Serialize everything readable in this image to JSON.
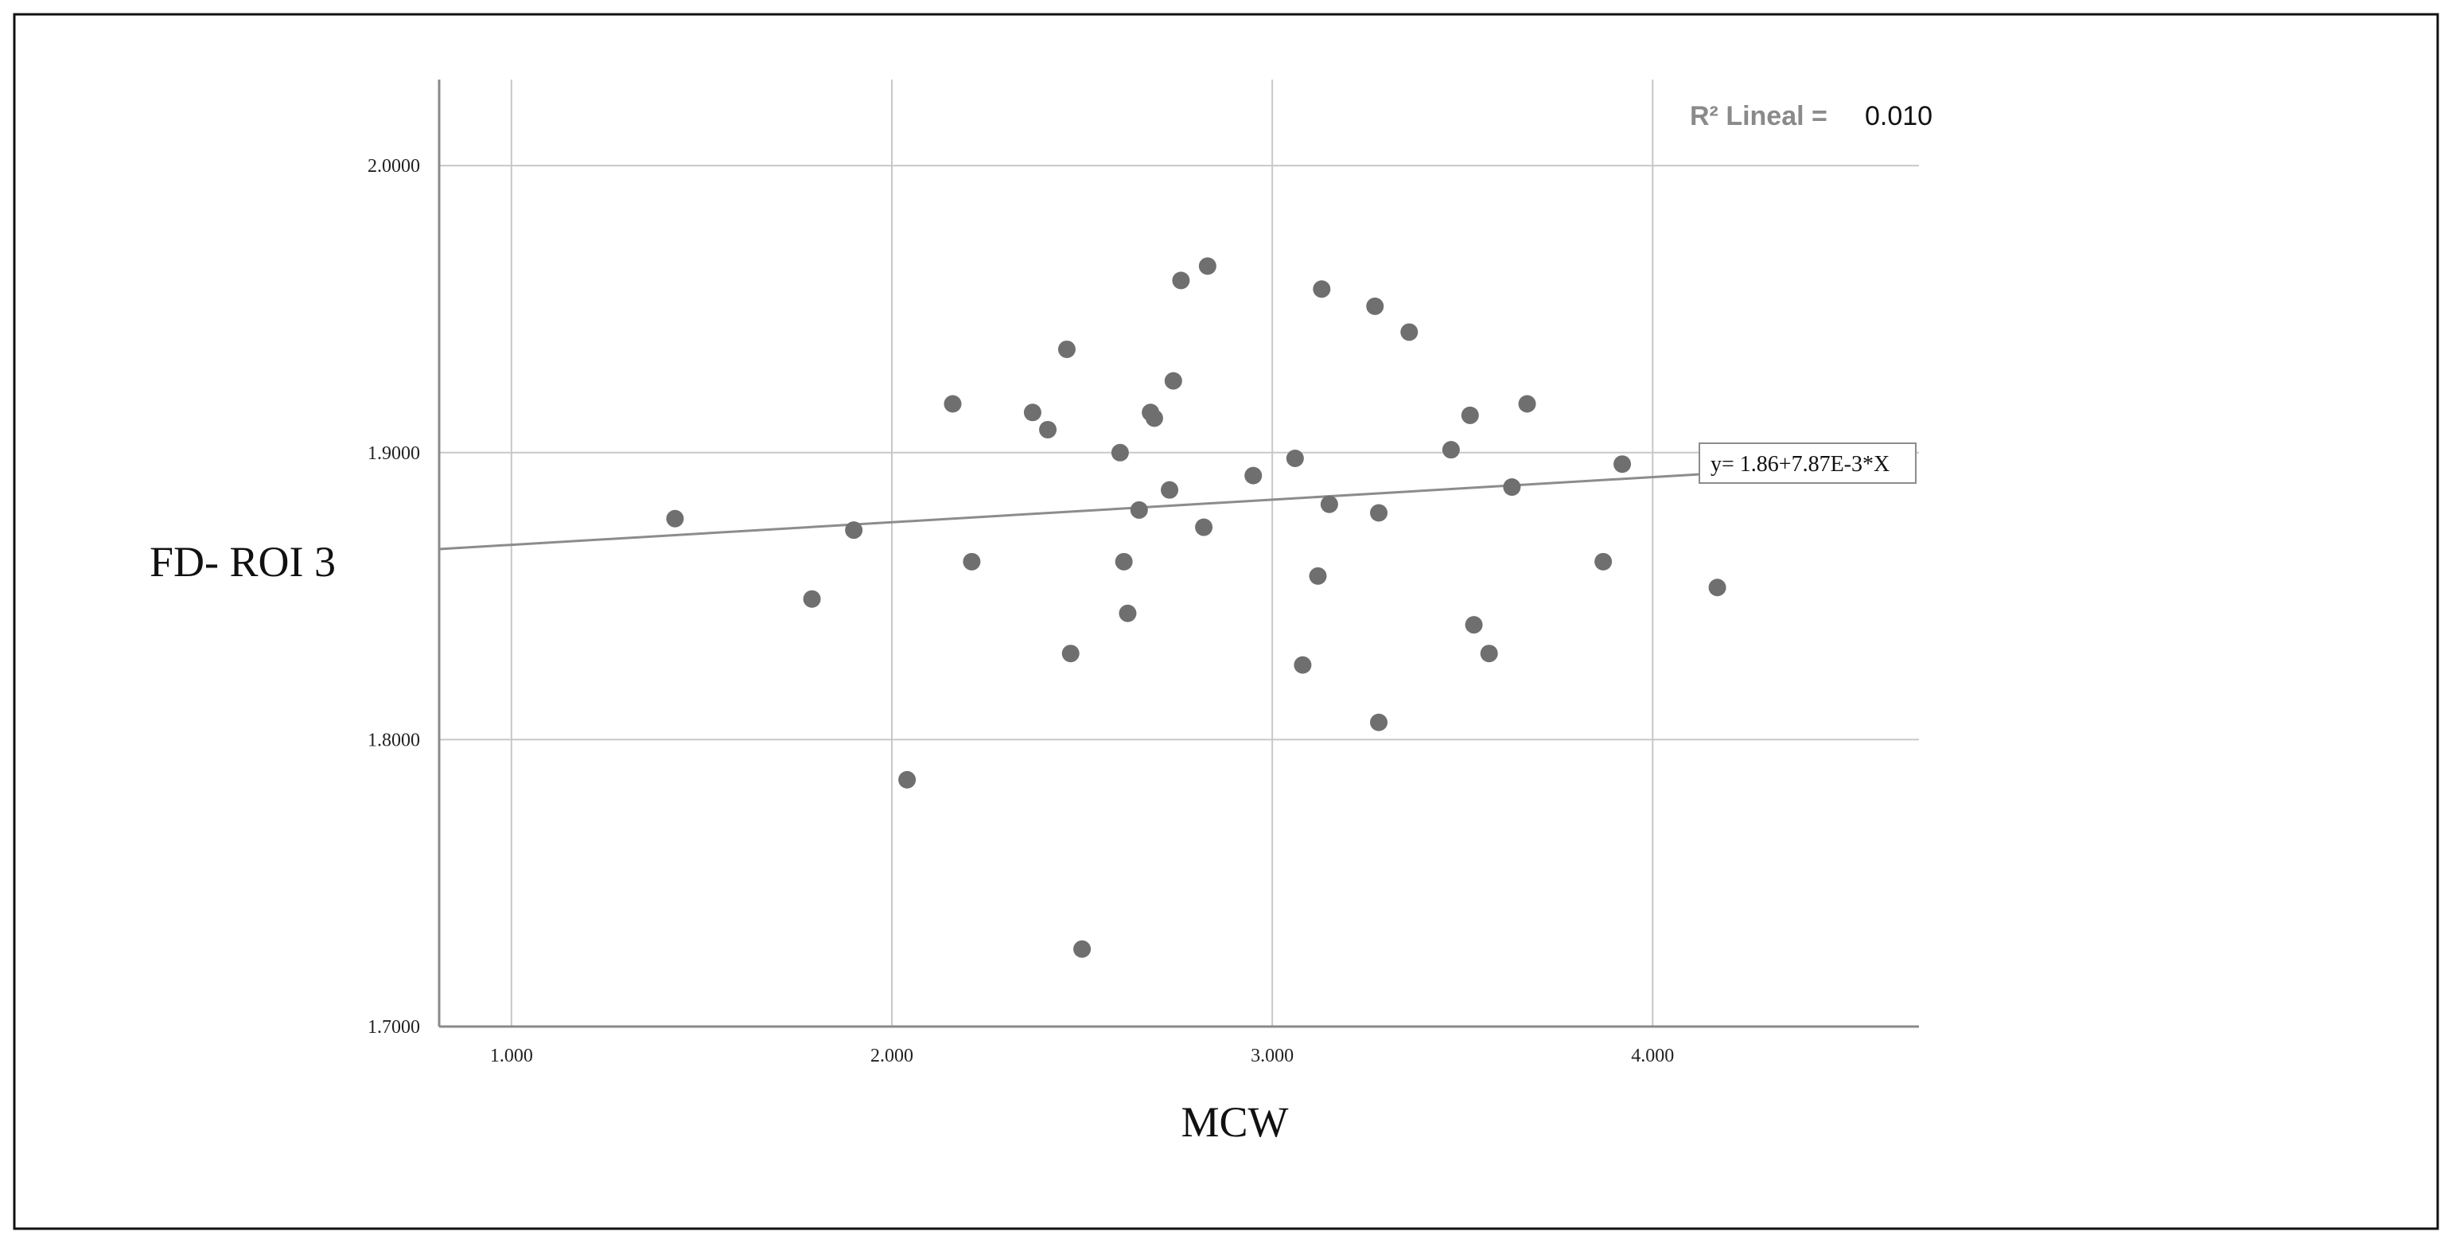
{
  "chart_data": {
    "type": "scatter",
    "xlabel": "MCW",
    "ylabel": "FD- ROI 3",
    "xlim": [
      0.81,
      4.7
    ],
    "ylim": [
      1.7,
      2.03
    ],
    "x_ticks": [
      {
        "value": 1.0,
        "label": "1.000"
      },
      {
        "value": 2.0,
        "label": "2.000"
      },
      {
        "value": 3.0,
        "label": "3.000"
      },
      {
        "value": 4.0,
        "label": "4.000"
      }
    ],
    "y_ticks": [
      {
        "value": 1.7,
        "label": "1.7000"
      },
      {
        "value": 1.8,
        "label": "1.8000"
      },
      {
        "value": 1.9,
        "label": "1.9000"
      },
      {
        "value": 2.0,
        "label": "2.0000"
      }
    ],
    "grid": true,
    "fit_line": {
      "intercept": 1.86,
      "slope": 0.00787,
      "equation": "y= 1.86+7.87E-3*X"
    },
    "r2": {
      "label": "R² Lineal =",
      "value": "0.010"
    },
    "colors": {
      "points": "#6f6f6f",
      "fit_line": "#8c8c8c",
      "grid": "#c8c8c8",
      "axis": "#8a8a8a",
      "frame": "#111111"
    },
    "points": [
      {
        "x": 1.43,
        "y": 1.877
      },
      {
        "x": 1.79,
        "y": 1.849
      },
      {
        "x": 1.9,
        "y": 1.873
      },
      {
        "x": 2.04,
        "y": 1.786
      },
      {
        "x": 2.16,
        "y": 1.917
      },
      {
        "x": 2.21,
        "y": 1.862
      },
      {
        "x": 2.37,
        "y": 1.914
      },
      {
        "x": 2.41,
        "y": 1.908
      },
      {
        "x": 2.46,
        "y": 1.936
      },
      {
        "x": 2.47,
        "y": 1.83
      },
      {
        "x": 2.5,
        "y": 1.727
      },
      {
        "x": 2.6,
        "y": 1.9
      },
      {
        "x": 2.61,
        "y": 1.862
      },
      {
        "x": 2.62,
        "y": 1.844
      },
      {
        "x": 2.65,
        "y": 1.88
      },
      {
        "x": 2.68,
        "y": 1.914
      },
      {
        "x": 2.69,
        "y": 1.912
      },
      {
        "x": 2.73,
        "y": 1.887
      },
      {
        "x": 2.74,
        "y": 1.925
      },
      {
        "x": 2.76,
        "y": 1.96
      },
      {
        "x": 2.82,
        "y": 1.874
      },
      {
        "x": 2.83,
        "y": 1.965
      },
      {
        "x": 2.95,
        "y": 1.892
      },
      {
        "x": 3.06,
        "y": 1.898
      },
      {
        "x": 3.08,
        "y": 1.826
      },
      {
        "x": 3.12,
        "y": 1.857
      },
      {
        "x": 3.13,
        "y": 1.957
      },
      {
        "x": 3.15,
        "y": 1.882
      },
      {
        "x": 3.27,
        "y": 1.951
      },
      {
        "x": 3.28,
        "y": 1.806
      },
      {
        "x": 3.28,
        "y": 1.879
      },
      {
        "x": 3.36,
        "y": 1.942
      },
      {
        "x": 3.47,
        "y": 1.901
      },
      {
        "x": 3.52,
        "y": 1.913
      },
      {
        "x": 3.53,
        "y": 1.84
      },
      {
        "x": 3.57,
        "y": 1.83
      },
      {
        "x": 3.63,
        "y": 1.888
      },
      {
        "x": 3.67,
        "y": 1.917
      },
      {
        "x": 3.87,
        "y": 1.862
      },
      {
        "x": 3.92,
        "y": 1.896
      },
      {
        "x": 4.17,
        "y": 1.853
      }
    ]
  }
}
